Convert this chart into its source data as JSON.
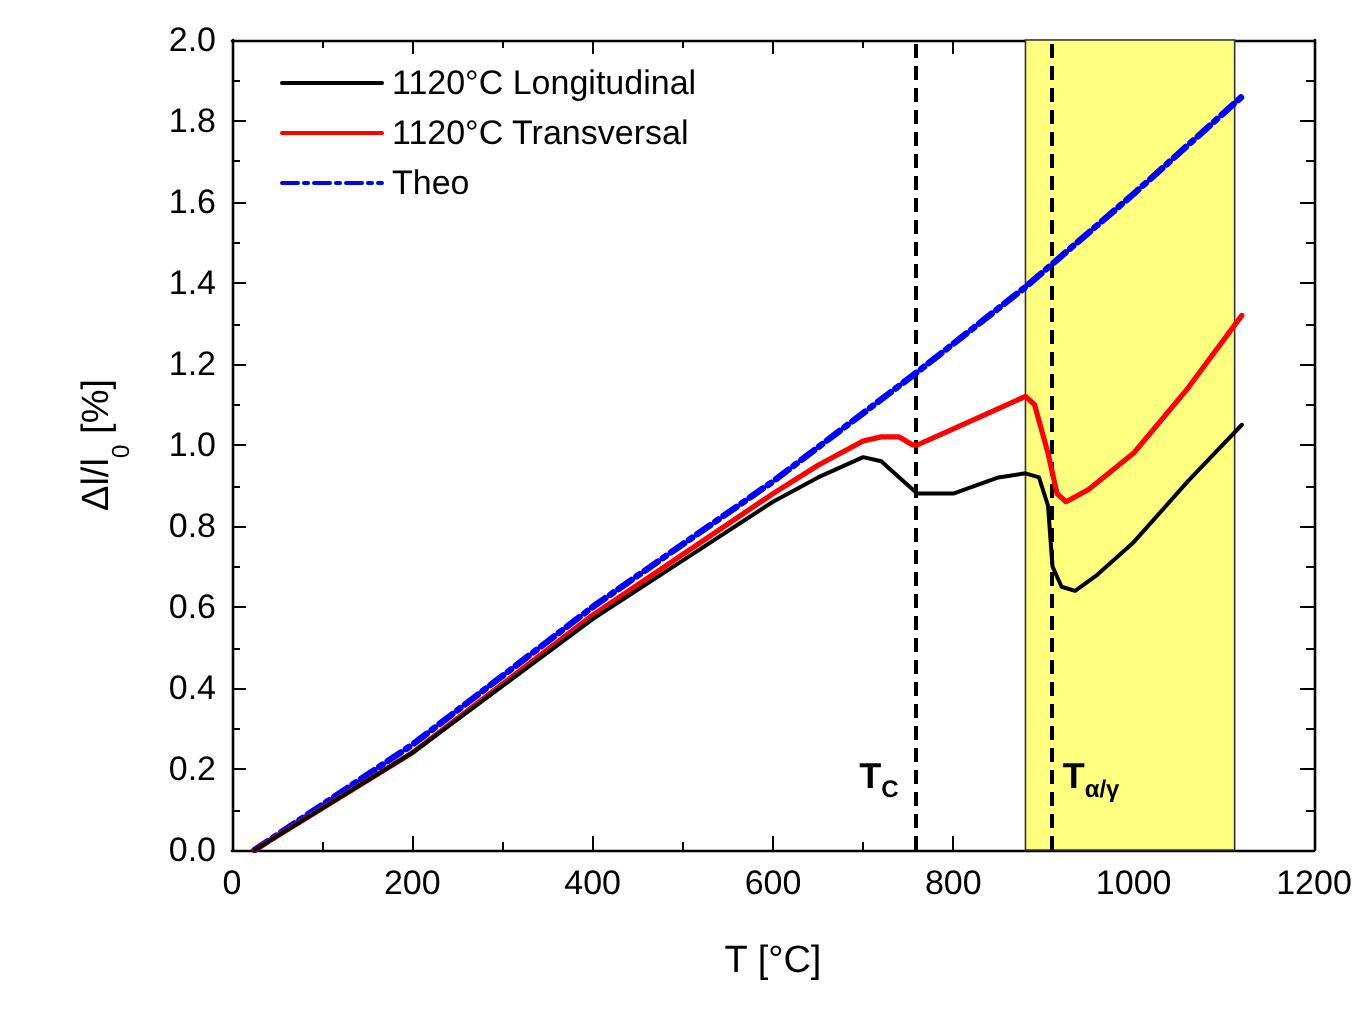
{
  "chart_data": {
    "type": "line",
    "xlabel": "T [°C]",
    "ylabel": "Δl/l$_{0}$ [%]",
    "xlim": [
      0,
      1200
    ],
    "xticks": [
      0,
      200,
      400,
      600,
      800,
      1000,
      1200
    ],
    "ylim": [
      0,
      2.0
    ],
    "yticks": [
      {
        "value": 0,
        "label": "0.0"
      },
      {
        "value": 0.2,
        "label": "0.2"
      },
      {
        "value": 0.4,
        "label": "0.4"
      },
      {
        "value": 0.6,
        "label": "0.6"
      },
      {
        "value": 0.8,
        "label": "0.8"
      },
      {
        "value": 1.0,
        "label": "1.0"
      },
      {
        "value": 1.2,
        "label": "1.2"
      },
      {
        "value": 1.4,
        "label": "1.4"
      },
      {
        "value": 1.6,
        "label": "1.6"
      },
      {
        "value": 1.8,
        "label": "1.8"
      },
      {
        "value": 2.0,
        "label": "2.0"
      }
    ],
    "grid": false,
    "legend": "top left",
    "marker": "none",
    "series": [
      {
        "name": "1120°C Longitudinal",
        "color": "#000000",
        "line_style": "solid",
        "x": [
          25,
          200,
          400,
          600,
          650,
          700,
          720,
          740,
          760,
          800,
          850,
          880,
          895,
          905,
          910,
          920,
          935,
          960,
          1000,
          1060,
          1120
        ],
        "values": [
          0,
          0.24,
          0.57,
          0.86,
          0.92,
          0.97,
          0.96,
          0.92,
          0.88,
          0.88,
          0.92,
          0.93,
          0.92,
          0.85,
          0.7,
          0.65,
          0.64,
          0.68,
          0.76,
          0.91,
          1.05
        ]
      },
      {
        "name": "1120°C Transversal",
        "color": "#ff0000",
        "line_style": "solid",
        "x": [
          25,
          200,
          400,
          600,
          650,
          700,
          720,
          740,
          755,
          760,
          800,
          850,
          880,
          890,
          905,
          915,
          925,
          950,
          1000,
          1060,
          1120
        ],
        "values": [
          0,
          0.24,
          0.58,
          0.88,
          0.95,
          1.01,
          1.02,
          1.02,
          1.0,
          1.0,
          1.04,
          1.09,
          1.12,
          1.1,
          0.98,
          0.88,
          0.86,
          0.89,
          0.98,
          1.14,
          1.32
        ]
      },
      {
        "name": "Theo",
        "color": "#0000ff",
        "line_style": "dashdot",
        "x": [
          25,
          200,
          400,
          600,
          760,
          880,
          1000,
          1120
        ],
        "values": [
          0,
          0.26,
          0.6,
          0.91,
          1.18,
          1.39,
          1.62,
          1.86
        ]
      }
    ],
    "ref_lines": [
      {
        "axis": "x",
        "value": 757,
        "label": "T$_{C}$",
        "color": "#000000",
        "line_style": "dashed"
      },
      {
        "axis": "x",
        "value": 908,
        "label": "T$_{α/γ}$",
        "color": "#000000",
        "line_style": "dashed"
      }
    ],
    "bands": [
      {
        "axis": "x",
        "from": 880,
        "to": 1112,
        "color": "#ffff80"
      }
    ]
  }
}
